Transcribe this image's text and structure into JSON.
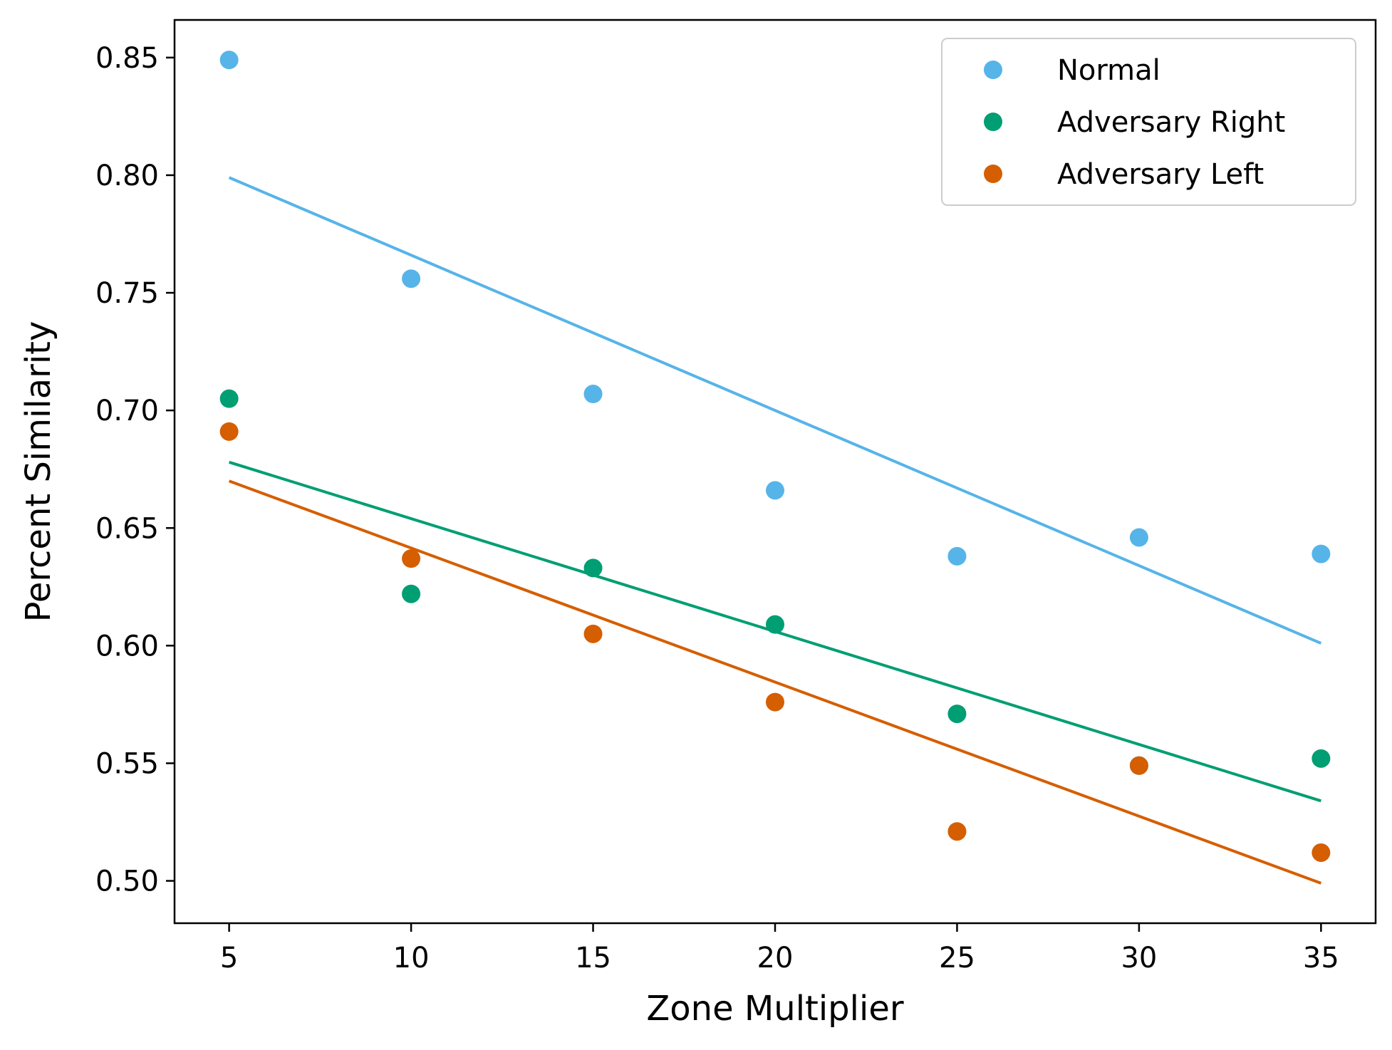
{
  "chart_data": {
    "type": "scatter",
    "title": "",
    "xlabel": "Zone Multiplier",
    "ylabel": "Percent Similarity",
    "xlim": [
      3.5,
      36.5
    ],
    "ylim": [
      0.482,
      0.866
    ],
    "xticks": [
      5,
      10,
      15,
      20,
      25,
      30,
      35
    ],
    "yticks": [
      0.5,
      0.55,
      0.6,
      0.65,
      0.7,
      0.75,
      0.8,
      0.85
    ],
    "xtick_labels": [
      "5",
      "10",
      "15",
      "20",
      "25",
      "30",
      "35"
    ],
    "ytick_labels": [
      "0.50",
      "0.55",
      "0.60",
      "0.65",
      "0.70",
      "0.75",
      "0.80",
      "0.85"
    ],
    "grid": false,
    "legend_position": "top-right",
    "x": [
      5,
      10,
      15,
      20,
      25,
      30,
      35
    ],
    "series": [
      {
        "name": "Normal",
        "color": "#56B4E9",
        "values": [
          0.849,
          0.756,
          0.707,
          0.666,
          0.638,
          0.646,
          0.639
        ],
        "trendline": [
          0.799,
          0.601
        ]
      },
      {
        "name": "Adversary Right",
        "color": "#009E73",
        "values": [
          0.705,
          0.622,
          0.633,
          0.609,
          0.571,
          0.549,
          0.552
        ],
        "trendline": [
          0.678,
          0.534
        ]
      },
      {
        "name": "Adversary Left",
        "color": "#D55E00",
        "values": [
          0.691,
          0.637,
          0.605,
          0.576,
          0.521,
          0.549,
          0.512
        ],
        "trendline": [
          0.67,
          0.499
        ]
      }
    ]
  }
}
